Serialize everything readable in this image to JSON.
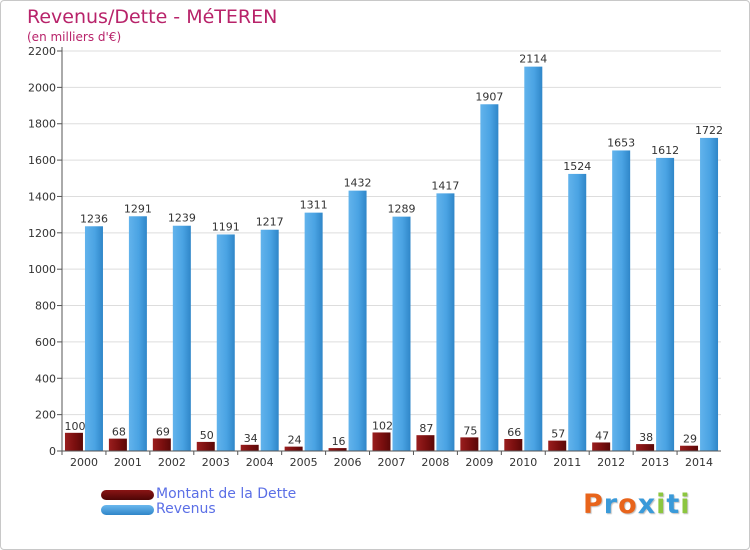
{
  "header": {
    "title": "Revenus/Dette - MéTEREN",
    "subtitle": "(en milliers d'€)"
  },
  "legend": {
    "debt": "Montant de la Dette",
    "revenue": "Revenus"
  },
  "logo": {
    "text": "Proxiti",
    "colors": [
      "#e8641b",
      "#3a9ad9",
      "#e8641b",
      "#3a9ad9",
      "#8cc63f",
      "#3a9ad9",
      "#8cc63f"
    ]
  },
  "colors": {
    "debt": "#7a0f0f",
    "revenue": "#4aa3e3",
    "grid": "#dddddd",
    "axis": "#555555",
    "text": "#333333",
    "title": "#b8236a"
  },
  "chart_data": {
    "type": "bar",
    "title": "Revenus/Dette - MéTEREN",
    "subtitle": "(en milliers d'€)",
    "ylim": [
      0,
      2200
    ],
    "yticks": [
      0,
      200,
      400,
      600,
      800,
      1000,
      1200,
      1400,
      1600,
      1800,
      2000,
      2200
    ],
    "grid": true,
    "legend_position": "bottom-left",
    "categories": [
      "2000",
      "2001",
      "2002",
      "2003",
      "2004",
      "2005",
      "2006",
      "2007",
      "2008",
      "2009",
      "2010",
      "2011",
      "2012",
      "2013",
      "2014"
    ],
    "series": [
      {
        "name": "Montant de la Dette",
        "values": [
          100,
          68,
          69,
          50,
          34,
          24,
          16,
          102,
          87,
          75,
          66,
          57,
          47,
          38,
          29
        ]
      },
      {
        "name": "Revenus",
        "values": [
          1236,
          1291,
          1239,
          1191,
          1217,
          1311,
          1432,
          1289,
          1417,
          1907,
          2114,
          1524,
          1653,
          1612,
          1722
        ]
      }
    ]
  }
}
